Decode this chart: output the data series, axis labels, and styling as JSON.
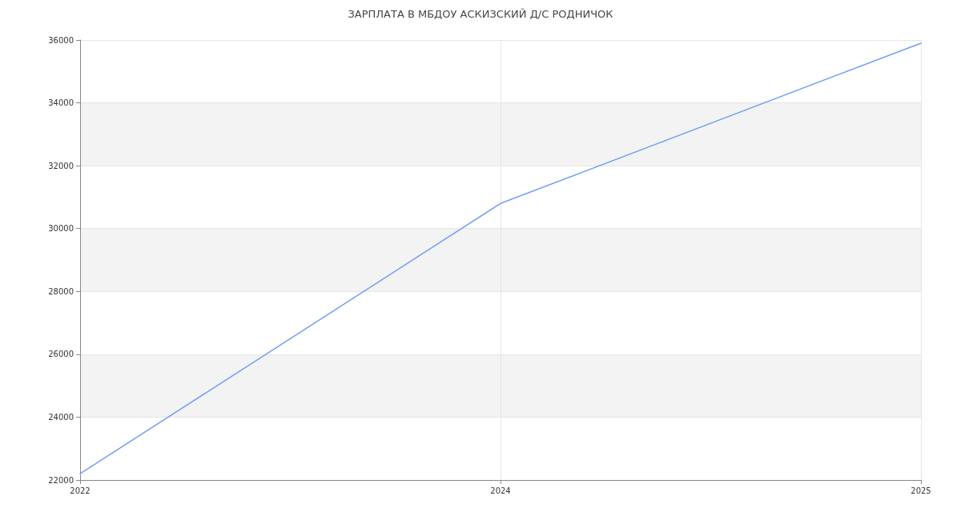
{
  "chart_data": {
    "type": "line",
    "title": "ЗАРПЛАТА В МБДОУ АСКИЗСКИЙ Д/С РОДНИЧОК",
    "categories": [
      "2022",
      "2024",
      "2025"
    ],
    "series": [
      {
        "color": "#6f9ef5",
        "values": [
          22200,
          30800,
          35900
        ]
      }
    ],
    "ylim": [
      22000,
      36000
    ],
    "yticks": [
      22000,
      24000,
      26000,
      28000,
      30000,
      32000,
      34000,
      36000
    ],
    "grid": true,
    "marker": "none",
    "line_style": "solid"
  }
}
